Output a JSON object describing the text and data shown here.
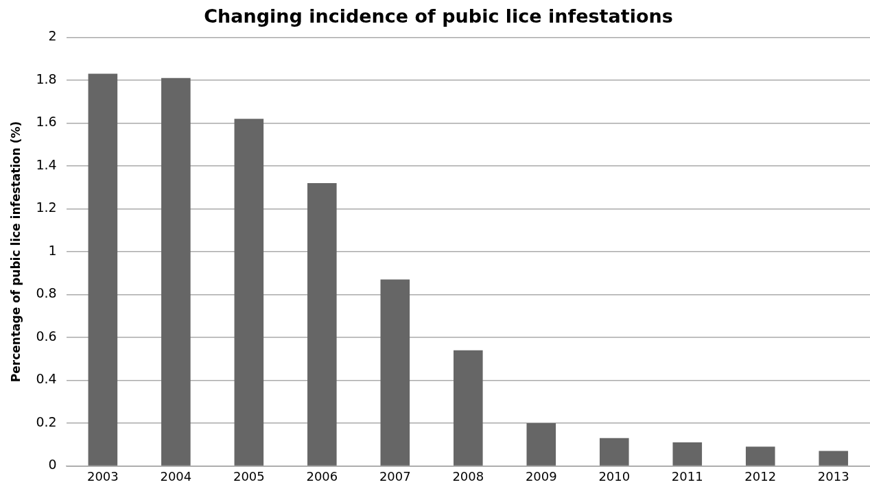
{
  "chart_data": {
    "type": "bar",
    "title": "Changing incidence of pubic lice infestations",
    "ylabel": "Percentage of pubic lice infestation (%)",
    "categories": [
      "2003",
      "2004",
      "2005",
      "2006",
      "2007",
      "2008",
      "2009",
      "2010",
      "2011",
      "2012",
      "2013"
    ],
    "values": [
      1.83,
      1.81,
      1.62,
      1.32,
      0.87,
      0.54,
      0.2,
      0.13,
      0.11,
      0.09,
      0.07
    ],
    "color": "#666666",
    "ylim": [
      0,
      2
    ],
    "yticks": [
      0,
      {
        "value": 0.2,
        "label": "0.2"
      },
      {
        "value": 0.4,
        "label": "0.4"
      },
      {
        "value": 0.6,
        "label": "0.6"
      },
      {
        "value": 0.8,
        "label": "0.8"
      },
      1,
      {
        "value": 1.2,
        "label": "1.2"
      },
      {
        "value": 1.4,
        "label": "1.4"
      },
      {
        "value": 1.6,
        "label": "1.6"
      },
      {
        "value": 1.8,
        "label": "1.8"
      },
      2
    ],
    "grid": "y",
    "legend": false
  }
}
